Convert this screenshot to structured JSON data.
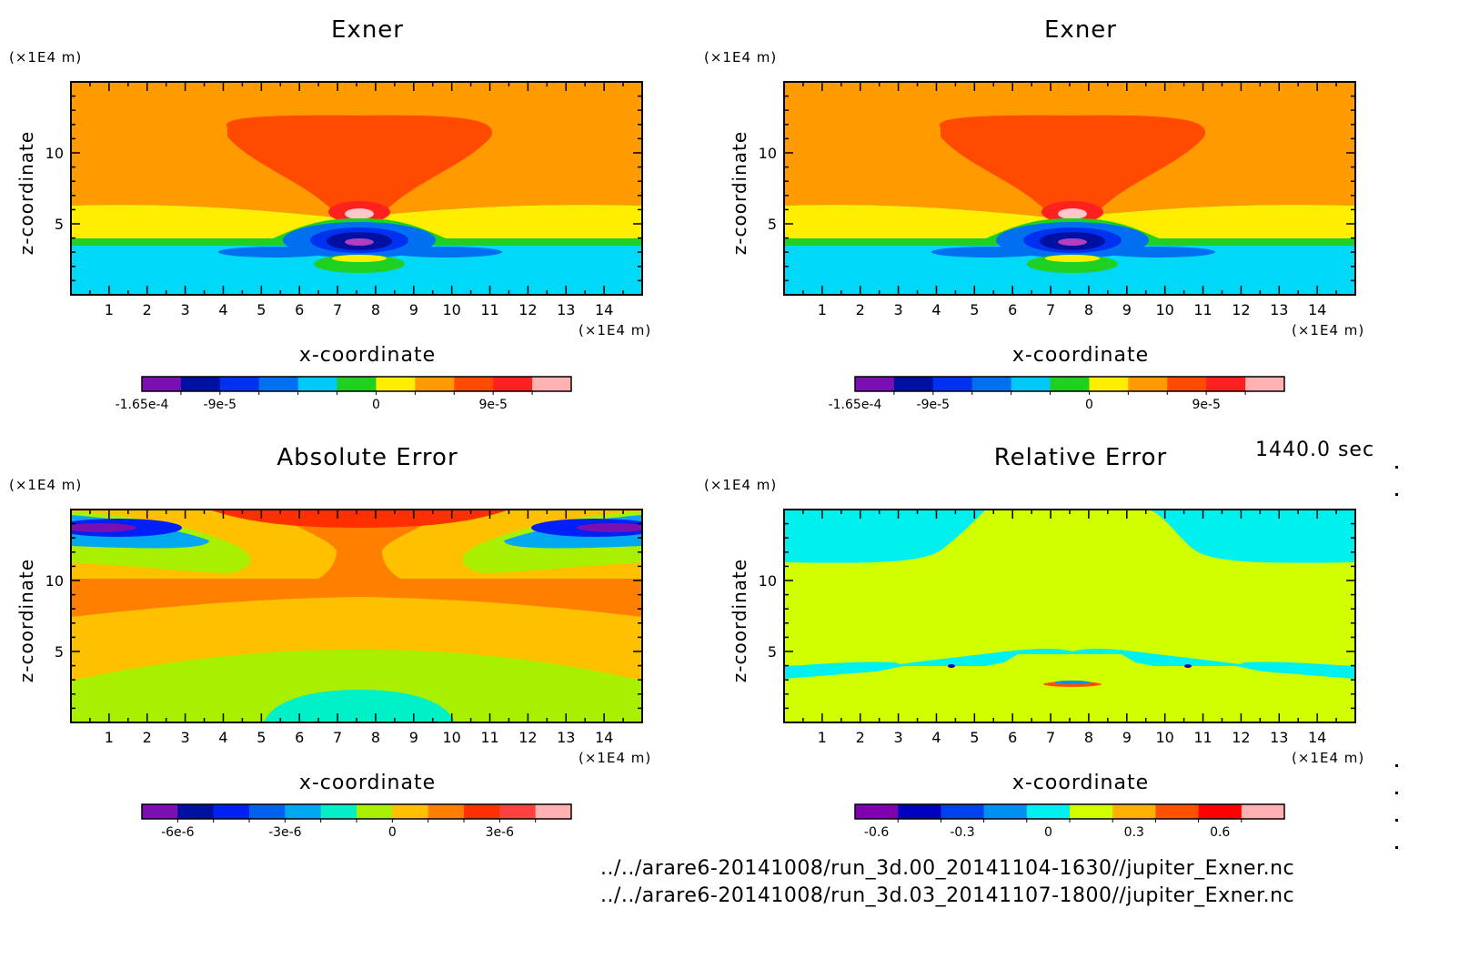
{
  "time_label": "1440.0 sec",
  "files": [
    "../../arare6-20141008/run_3d.00_20141104-1630//jupiter_Exner.nc",
    "../../arare6-20141008/run_3d.03_20141107-1800//jupiter_Exner.nc"
  ],
  "chart_data": [
    {
      "type": "heatmap",
      "title": "Exner",
      "xlabel": "x-coordinate",
      "ylabel": "z-coordinate",
      "x_unit": "(×1E4 m)",
      "y_unit": "(×1E4 m)",
      "xlim": [
        0,
        15
      ],
      "ylim": [
        0,
        15
      ],
      "x_ticks": [
        1,
        2,
        3,
        4,
        5,
        6,
        7,
        8,
        9,
        10,
        11,
        12,
        13,
        14
      ],
      "y_ticks": [
        5,
        10
      ],
      "colorbar": {
        "colors": [
          "#7a10b0",
          "#0010a0",
          "#0030f0",
          "#0070f0",
          "#00c8f8",
          "#20d020",
          "#ffee00",
          "#ff9a00",
          "#ff4a00",
          "#ff2020",
          "#ffb0b0"
        ],
        "tick_labels": [
          "-1.65e-4",
          "-9e-5",
          "0",
          "9e-5"
        ],
        "tick_index": [
          0,
          2,
          6,
          9
        ]
      }
    },
    {
      "type": "heatmap",
      "title": "Exner",
      "xlabel": "x-coordinate",
      "ylabel": "z-coordinate",
      "x_unit": "(×1E4 m)",
      "y_unit": "(×1E4 m)",
      "xlim": [
        0,
        15
      ],
      "ylim": [
        0,
        15
      ],
      "x_ticks": [
        1,
        2,
        3,
        4,
        5,
        6,
        7,
        8,
        9,
        10,
        11,
        12,
        13,
        14
      ],
      "y_ticks": [
        5,
        10
      ],
      "colorbar": {
        "colors": [
          "#7a10b0",
          "#0010a0",
          "#0030f0",
          "#0070f0",
          "#00c8f8",
          "#20d020",
          "#ffee00",
          "#ff9a00",
          "#ff4a00",
          "#ff2020",
          "#ffb0b0"
        ],
        "tick_labels": [
          "-1.65e-4",
          "-9e-5",
          "0",
          "9e-5"
        ],
        "tick_index": [
          0,
          2,
          6,
          9
        ]
      }
    },
    {
      "type": "heatmap",
      "title": "Absolute Error",
      "xlabel": "x-coordinate",
      "ylabel": "z-coordinate",
      "x_unit": "(×1E4 m)",
      "y_unit": "(×1E4 m)",
      "xlim": [
        0,
        15
      ],
      "ylim": [
        0,
        15
      ],
      "x_ticks": [
        1,
        2,
        3,
        4,
        5,
        6,
        7,
        8,
        9,
        10,
        11,
        12,
        13,
        14
      ],
      "y_ticks": [
        5,
        10
      ],
      "colorbar": {
        "colors": [
          "#7a10b0",
          "#0010a0",
          "#0020f8",
          "#0060f0",
          "#00a8f0",
          "#00f0c8",
          "#a8f000",
          "#ffc000",
          "#ff8000",
          "#ff3000",
          "#ff4040",
          "#ffb0b0"
        ],
        "tick_labels": [
          "-6e-6",
          "-3e-6",
          "0",
          "3e-6"
        ],
        "tick_index": [
          1,
          4,
          7,
          10
        ]
      }
    },
    {
      "type": "heatmap",
      "title": "Relative Error",
      "xlabel": "x-coordinate",
      "ylabel": "z-coordinate",
      "x_unit": "(×1E4 m)",
      "y_unit": "(×1E4 m)",
      "xlim": [
        0,
        15
      ],
      "ylim": [
        0,
        15
      ],
      "x_ticks": [
        1,
        2,
        3,
        4,
        5,
        6,
        7,
        8,
        9,
        10,
        11,
        12,
        13,
        14
      ],
      "y_ticks": [
        5,
        10
      ],
      "colorbar": {
        "colors": [
          "#8000b0",
          "#0000c0",
          "#0040f0",
          "#0090f0",
          "#00f0f0",
          "#d0ff00",
          "#ffb000",
          "#ff5000",
          "#ff0000",
          "#ffb0b0"
        ],
        "tick_labels": [
          "-0.6",
          "-0.3",
          "0",
          "0.3",
          "0.6"
        ],
        "tick_index": [
          0.5,
          2.5,
          4.5,
          6.5,
          8.5
        ]
      }
    }
  ]
}
